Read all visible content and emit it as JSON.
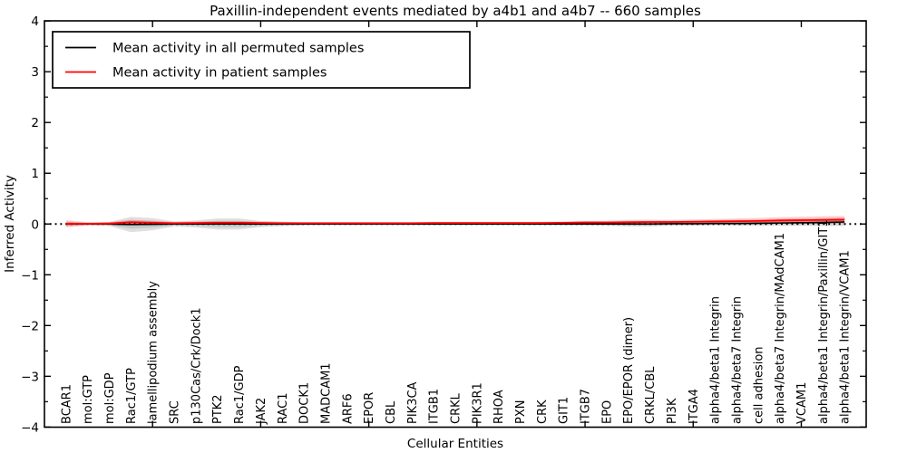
{
  "title": "Paxillin-independent events mediated by a4b1 and a4b7 -- 660 samples",
  "axes": {
    "ylabel": "Inferred Activity",
    "xlabel": "Cellular Entities",
    "yticks": [
      "4",
      "3",
      "2",
      "1",
      "0",
      "−1",
      "−2",
      "−3",
      "−4"
    ],
    "ylim": [
      -4,
      4
    ],
    "xlim": [
      0,
      38
    ]
  },
  "legend": [
    {
      "label": "Mean activity in all permuted samples",
      "color": "#000000"
    },
    {
      "label": "Mean activity in patient samples",
      "color": "#ff0000"
    }
  ],
  "colors": {
    "permuted_line": "#000000",
    "patient_line": "#ff0000",
    "permuted_band": "rgba(110,110,110,0.22)",
    "patient_band": "rgba(255,30,30,0.20)",
    "zero_line": "#000000"
  },
  "chart_data": {
    "type": "line",
    "title": "Paxillin-independent events mediated by a4b1 and a4b7 -- 660 samples",
    "xlabel": "Cellular Entities",
    "ylabel": "Inferred Activity",
    "ylim": [
      -4,
      4
    ],
    "grid": false,
    "legend_position": "upper left",
    "zero_reference_line": "dotted",
    "x_major_tick_every": 5,
    "categories": [
      "BCAR1",
      "mol:GTP",
      "mol:GDP",
      "Rac1/GTP",
      "lamellipodium assembly",
      "SRC",
      "p130Cas/Crk/Dock1",
      "PTK2",
      "Rac1/GDP",
      "JAK2",
      "RAC1",
      "DOCK1",
      "MADCAM1",
      "ARF6",
      "EPOR",
      "CBL",
      "PIK3CA",
      "ITGB1",
      "CRKL",
      "PIK3R1",
      "RHOA",
      "PXN",
      "CRK",
      "GIT1",
      "ITGB7",
      "EPO",
      "EPO/EPOR (dimer)",
      "CRKL/CBL",
      "PI3K",
      "ITGA4",
      "alpha4/beta1 Integrin",
      "alpha4/beta7 Integrin",
      "cell adhesion",
      "alpha4/beta7 Integrin/MAdCAM1",
      "VCAM1",
      "alpha4/beta1 Integrin/Paxillin/GIT1",
      "alpha4/beta1 Integrin/VCAM1"
    ],
    "series": [
      {
        "name": "Mean activity in all permuted samples",
        "color": "#000000",
        "values": [
          0,
          0,
          0,
          -0.01,
          -0.005,
          0,
          0,
          0,
          0,
          0,
          0,
          0,
          0,
          0,
          0,
          0,
          0,
          0,
          0,
          0,
          0,
          0,
          0,
          0,
          0,
          0,
          0,
          0,
          0.005,
          0.005,
          0.01,
          0.01,
          0.015,
          0.02,
          0.025,
          0.03,
          0.04
        ],
        "band_halfwidth": [
          0.05,
          0.025,
          0.04,
          0.15,
          0.12,
          0.05,
          0.07,
          0.11,
          0.11,
          0.06,
          0.045,
          0.03,
          0.025,
          0.025,
          0.025,
          0.025,
          0.025,
          0.025,
          0.025,
          0.025,
          0.025,
          0.025,
          0.025,
          0.03,
          0.03,
          0.035,
          0.05,
          0.05,
          0.04,
          0.04,
          0.04,
          0.045,
          0.05,
          0.055,
          0.06,
          0.07,
          0.08
        ]
      },
      {
        "name": "Mean activity in patient samples",
        "color": "#ff0000",
        "values": [
          0.005,
          0.005,
          0.01,
          0.035,
          0.025,
          0.015,
          0.02,
          0.025,
          0.025,
          0.02,
          0.015,
          0.015,
          0.015,
          0.015,
          0.015,
          0.015,
          0.015,
          0.02,
          0.02,
          0.02,
          0.02,
          0.02,
          0.02,
          0.025,
          0.03,
          0.03,
          0.035,
          0.04,
          0.04,
          0.045,
          0.05,
          0.055,
          0.06,
          0.07,
          0.075,
          0.08,
          0.085
        ],
        "band_halfwidth": [
          0.07,
          0.03,
          0.03,
          0.05,
          0.04,
          0.03,
          0.03,
          0.035,
          0.035,
          0.03,
          0.03,
          0.025,
          0.025,
          0.025,
          0.025,
          0.025,
          0.025,
          0.025,
          0.025,
          0.025,
          0.025,
          0.025,
          0.025,
          0.025,
          0.03,
          0.035,
          0.045,
          0.045,
          0.04,
          0.045,
          0.05,
          0.055,
          0.06,
          0.065,
          0.07,
          0.075,
          0.075
        ]
      }
    ]
  }
}
